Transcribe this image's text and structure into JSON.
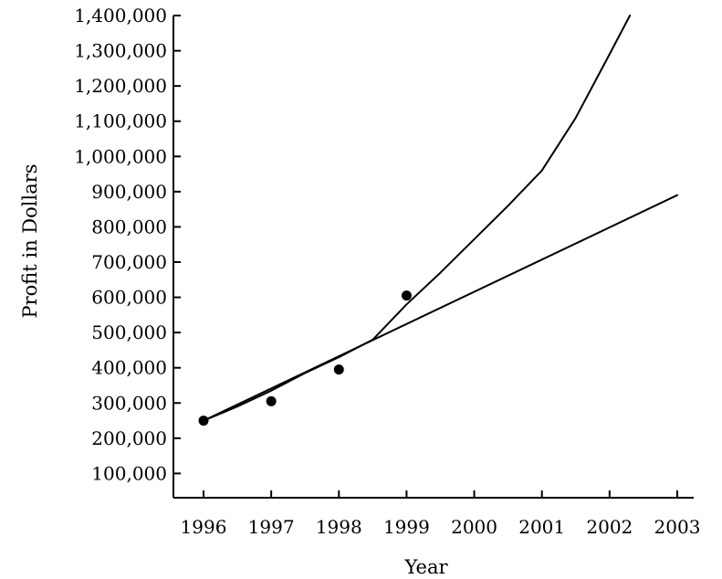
{
  "chart_data": {
    "type": "line",
    "title": "",
    "xlabel": "Year",
    "ylabel": "Profit in Dollars",
    "x_ticks": [
      "1996",
      "1997",
      "1998",
      "1999",
      "2000",
      "2001",
      "2002",
      "2003"
    ],
    "y_ticks": [
      "100,000",
      "200,000",
      "300,000",
      "400,000",
      "500,000",
      "600,000",
      "700,000",
      "800,000",
      "900,000",
      "1,000,000",
      "1,100,000",
      "1,200,000",
      "1,300,000",
      "1,400,000"
    ],
    "xlim": [
      1995.6,
      2003.25
    ],
    "ylim": [
      0,
      1400000
    ],
    "grid": false,
    "points": [
      {
        "x": 1996,
        "y": 250000
      },
      {
        "x": 1997,
        "y": 305000
      },
      {
        "x": 1998,
        "y": 395000
      },
      {
        "x": 1999,
        "y": 605000
      }
    ],
    "series": [
      {
        "style": "curve",
        "x": [
          1996,
          1996.5,
          1997,
          1997.5,
          1998,
          1998.5,
          1999,
          1999.5,
          2000,
          2000.5,
          2001,
          2001.5,
          2002,
          2002.3
        ],
        "values": [
          250000,
          290000,
          335000,
          385000,
          430000,
          480000,
          580000,
          670000,
          765000,
          860000,
          960000,
          1110000,
          1290000,
          1400000
        ]
      },
      {
        "style": "straight",
        "x": [
          1996,
          2003
        ],
        "values": [
          250000,
          890000
        ]
      }
    ]
  }
}
